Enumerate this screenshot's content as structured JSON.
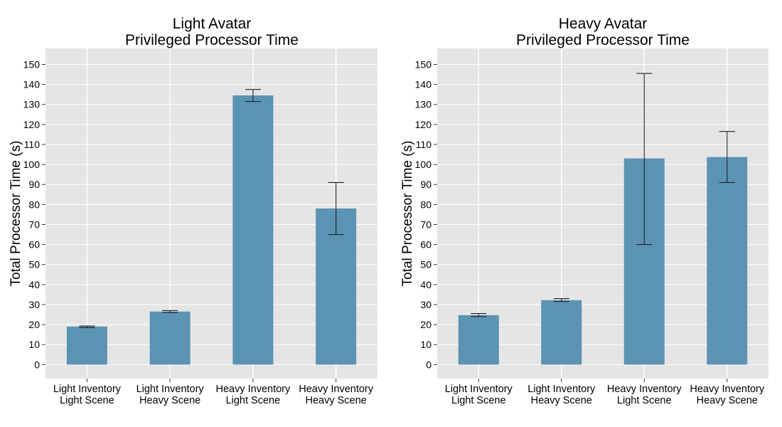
{
  "chart_data": [
    {
      "type": "bar",
      "title": [
        "Light Avatar",
        "Privileged Processor Time"
      ],
      "xlabel": "",
      "ylabel": "Total Processor Time (s)",
      "ylim": [
        -7,
        158
      ],
      "yticks": [
        0,
        10,
        20,
        30,
        40,
        50,
        60,
        70,
        80,
        90,
        100,
        110,
        120,
        130,
        140,
        150
      ],
      "grid": true,
      "categories": [
        [
          "Light Inventory",
          "Light Scene"
        ],
        [
          "Light Inventory",
          "Heavy Scene"
        ],
        [
          "Heavy Inventory",
          "Light Scene"
        ],
        [
          "Heavy Inventory",
          "Heavy Scene"
        ]
      ],
      "values": [
        19,
        26.5,
        134.5,
        78
      ],
      "error_low": [
        18.5,
        26,
        131.5,
        65
      ],
      "error_high": [
        19.3,
        27,
        137.5,
        91
      ],
      "colors": {
        "bar": "#5b93b3",
        "panel": "#e5e5e5",
        "grid": "#ffffff"
      }
    },
    {
      "type": "bar",
      "title": [
        "Heavy Avatar",
        "Privileged Processor Time"
      ],
      "xlabel": "",
      "ylabel": "Total Processor Time (s)",
      "ylim": [
        -7,
        158
      ],
      "yticks": [
        0,
        10,
        20,
        30,
        40,
        50,
        60,
        70,
        80,
        90,
        100,
        110,
        120,
        130,
        140,
        150
      ],
      "grid": true,
      "categories": [
        [
          "Light Inventory",
          "Light Scene"
        ],
        [
          "Light Inventory",
          "Heavy Scene"
        ],
        [
          "Heavy Inventory",
          "Light Scene"
        ],
        [
          "Heavy Inventory",
          "Heavy Scene"
        ]
      ],
      "values": [
        24.7,
        32.2,
        103,
        103.7
      ],
      "error_low": [
        24,
        31.5,
        60,
        91
      ],
      "error_high": [
        25.5,
        33,
        145.5,
        116.5
      ],
      "colors": {
        "bar": "#5b93b3",
        "panel": "#e5e5e5",
        "grid": "#ffffff"
      }
    }
  ]
}
